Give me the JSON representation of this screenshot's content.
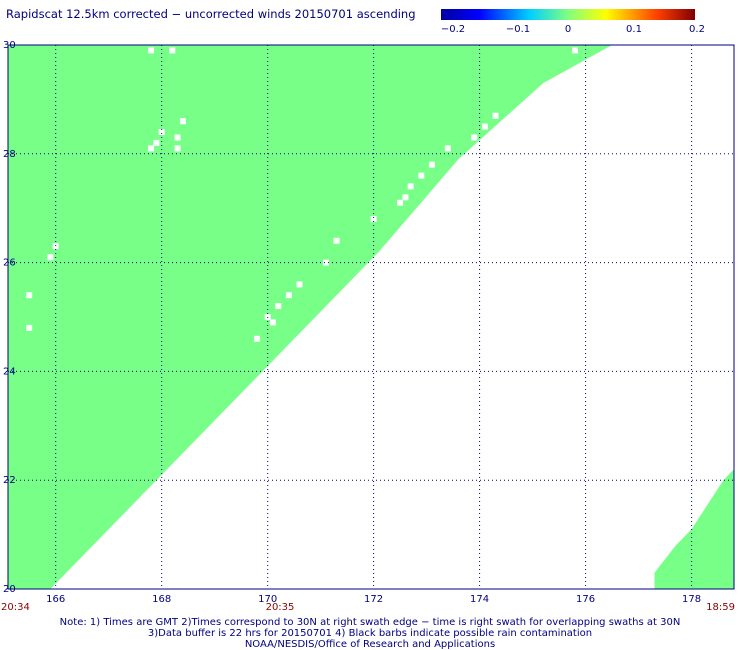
{
  "title": "Rapidscat 12.5km corrected − uncorrected winds 20150701 ascending",
  "colorbar": {
    "labels": [
      "−0.2",
      "−0.1",
      "0",
      "0.1",
      "0.2"
    ],
    "range": [
      -0.2,
      0.2
    ]
  },
  "chart_data": {
    "type": "heatmap",
    "title": "Rapidscat 12.5km corrected − uncorrected winds 20150701 ascending",
    "xlim": [
      165.1,
      178.8
    ],
    "ylim": [
      20,
      30
    ],
    "x_ticks": [
      166,
      168,
      170,
      172,
      174,
      176,
      178
    ],
    "y_ticks": [
      20,
      22,
      24,
      26,
      28,
      30
    ],
    "grid": true,
    "fill_color": "#77ff88",
    "value": 0,
    "swath_boundaries": [
      {
        "name": "main",
        "points": [
          [
            165.1,
            20
          ],
          [
            165.9,
            20
          ],
          [
            170.0,
            24.1
          ],
          [
            172.1,
            26.2
          ],
          [
            173.6,
            27.9
          ],
          [
            175.2,
            29.3
          ],
          [
            176.5,
            30.0
          ],
          [
            165.1,
            30.0
          ]
        ]
      },
      {
        "name": "east",
        "points": [
          [
            177.3,
            20
          ],
          [
            178.8,
            20
          ],
          [
            178.8,
            22.2
          ],
          [
            178.6,
            22.0
          ],
          [
            178.0,
            21.1
          ],
          [
            177.7,
            20.8
          ],
          [
            177.3,
            20.3
          ]
        ]
      }
    ],
    "white_pixels": [
      [
        167.8,
        29.9
      ],
      [
        168.2,
        29.9
      ],
      [
        175.8,
        29.9
      ],
      [
        174.3,
        28.7
      ],
      [
        174.1,
        28.5
      ],
      [
        173.9,
        28.3
      ],
      [
        168.4,
        28.6
      ],
      [
        168.0,
        28.4
      ],
      [
        168.3,
        28.3
      ],
      [
        167.9,
        28.2
      ],
      [
        167.8,
        28.1
      ],
      [
        168.3,
        28.1
      ],
      [
        173.4,
        28.1
      ],
      [
        173.1,
        27.8
      ],
      [
        172.9,
        27.6
      ],
      [
        172.7,
        27.4
      ],
      [
        172.6,
        27.2
      ],
      [
        172.5,
        27.1
      ],
      [
        172.0,
        26.8
      ],
      [
        171.3,
        26.4
      ],
      [
        171.1,
        26.0
      ],
      [
        166.0,
        26.3
      ],
      [
        165.9,
        26.1
      ],
      [
        170.6,
        25.6
      ],
      [
        170.4,
        25.4
      ],
      [
        170.2,
        25.2
      ],
      [
        170.0,
        25.0
      ],
      [
        170.1,
        24.9
      ],
      [
        169.8,
        24.6
      ],
      [
        165.5,
        25.4
      ],
      [
        165.5,
        24.8
      ]
    ]
  },
  "timestamps": {
    "left": "20:34",
    "middle": "20:35",
    "right": "18:59"
  },
  "notes": [
    "Note: 1) Times are GMT 2)Times correspond to 30N at right swath edge − time is right swath for overlapping swaths at 30N",
    "3)Data buffer is 22 hrs for 20150701 4) Black barbs indicate possible rain contamination",
    "NOAA/NESDIS/Office of Research and Applications"
  ]
}
